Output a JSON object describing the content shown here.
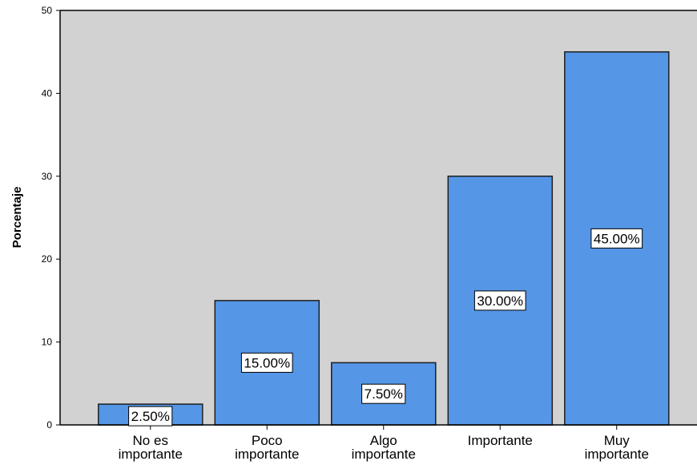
{
  "chart_data": {
    "type": "bar",
    "categories": [
      [
        "No es",
        "importante"
      ],
      [
        "Poco",
        "importante"
      ],
      [
        "Algo",
        "importante"
      ],
      [
        "Importante"
      ],
      [
        "Muy",
        "importante"
      ]
    ],
    "values": [
      2.5,
      15,
      7.5,
      30,
      45
    ],
    "data_labels": [
      "2.50%",
      "15.00%",
      "7.50%",
      "30.00%",
      "45.00%"
    ],
    "title": "",
    "xlabel": "",
    "ylabel": "Porcentaje",
    "ylim": [
      0,
      50
    ],
    "yticks": [
      0,
      10,
      20,
      30,
      40,
      50
    ],
    "grid": false,
    "colors": {
      "bar_fill": "#5596E6",
      "bar_stroke": "#1f1f1f",
      "plot_background": "#D2D2D2",
      "label_box_fill": "#FFFFFF",
      "label_box_stroke": "#000000"
    }
  }
}
